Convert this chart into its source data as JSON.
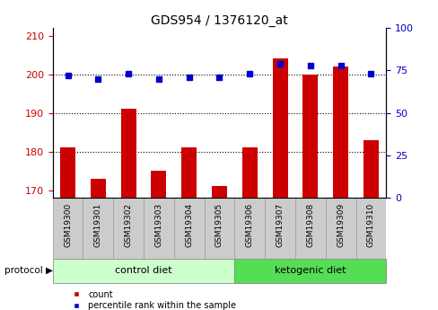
{
  "title": "GDS954 / 1376120_at",
  "samples": [
    "GSM19300",
    "GSM19301",
    "GSM19302",
    "GSM19303",
    "GSM19304",
    "GSM19305",
    "GSM19306",
    "GSM19307",
    "GSM19308",
    "GSM19309",
    "GSM19310"
  ],
  "counts": [
    181,
    173,
    191,
    175,
    181,
    171,
    181,
    204,
    200,
    202,
    183
  ],
  "percentile_ranks": [
    72,
    70,
    73,
    70,
    71,
    71,
    73,
    79,
    78,
    78,
    73
  ],
  "ylim_left": [
    168,
    212
  ],
  "ylim_right": [
    0,
    100
  ],
  "yticks_left": [
    170,
    180,
    190,
    200,
    210
  ],
  "yticks_right": [
    0,
    25,
    50,
    75,
    100
  ],
  "bar_color": "#cc0000",
  "dot_color": "#0000cc",
  "bar_width": 0.5,
  "control_color": "#ccffcc",
  "keto_color": "#55dd55",
  "gray_color": "#cccccc",
  "title_fontsize": 10,
  "tick_fontsize": 8,
  "sample_fontsize": 6.5,
  "protocol_label": "protocol",
  "legend_count_label": "count",
  "legend_pct_label": "percentile rank within the sample",
  "background_color": "#ffffff",
  "left_tick_color": "#cc0000",
  "right_tick_color": "#0000cc",
  "grid_ticks": [
    180,
    190,
    200
  ],
  "n_control": 6,
  "n_keto": 5
}
